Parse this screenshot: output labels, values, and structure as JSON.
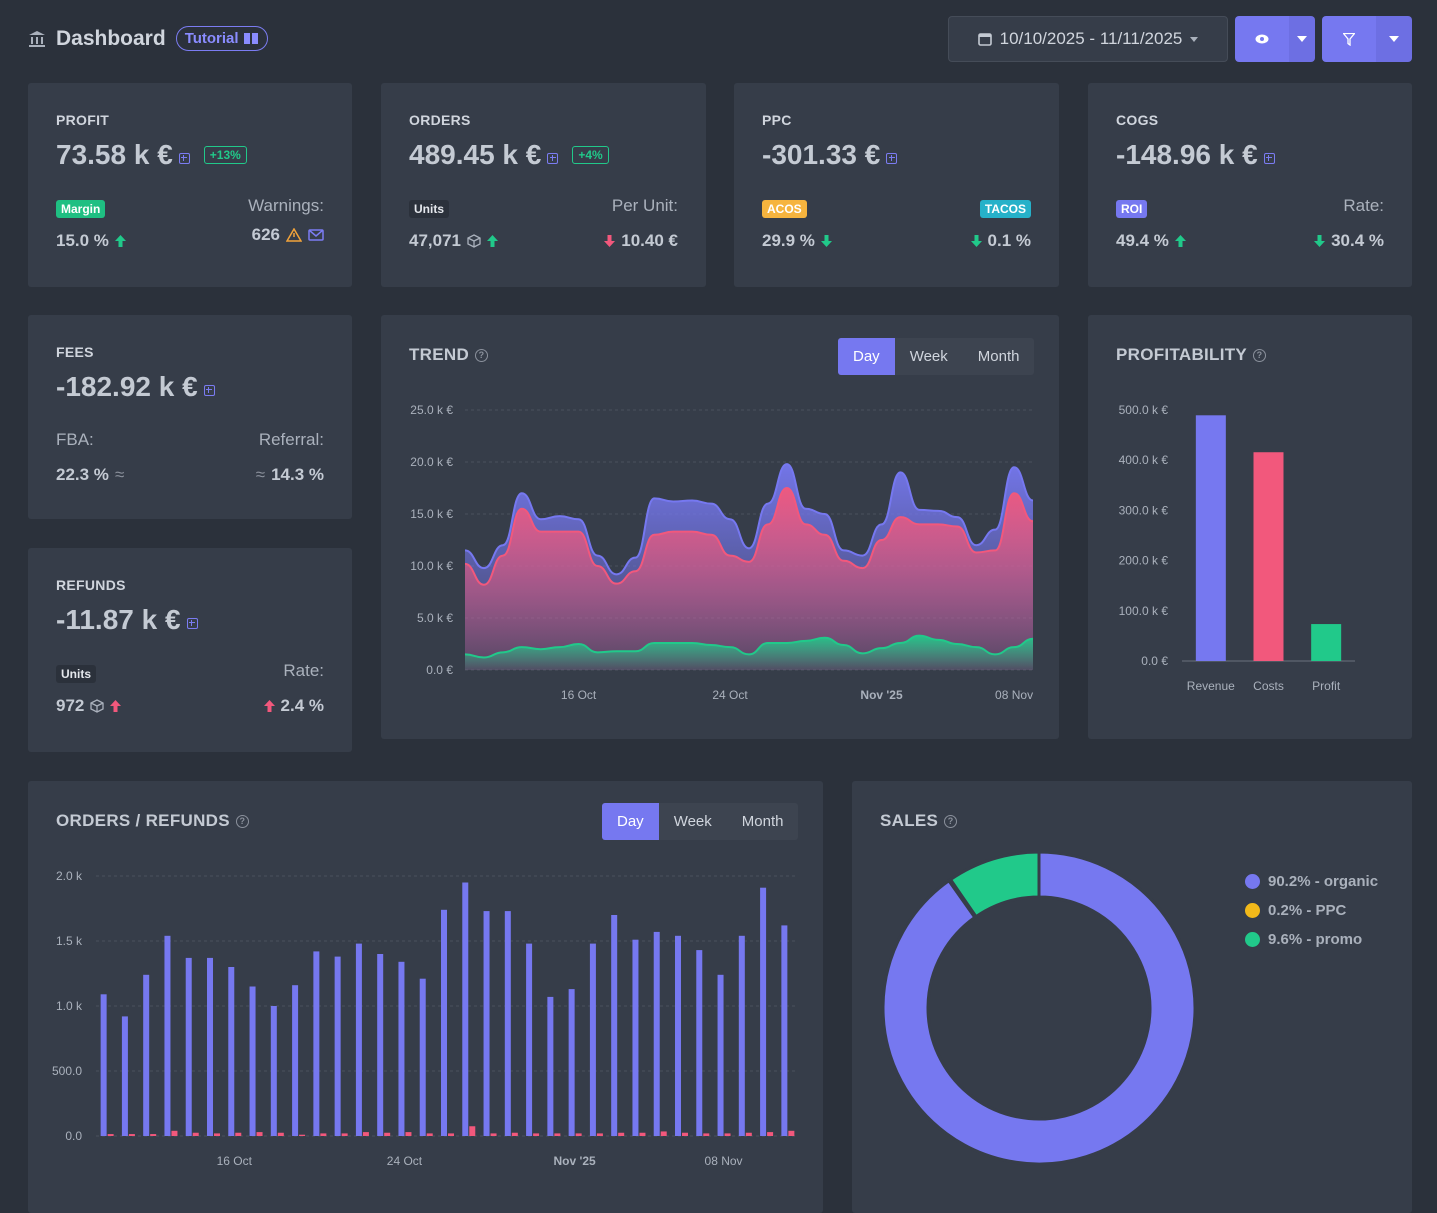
{
  "header": {
    "title": "Dashboard",
    "tutorial": "Tutorial",
    "date_range": "10/10/2025 - 11/11/2025"
  },
  "kpis": {
    "profit": {
      "label": "PROFIT",
      "value": "73.58 k €",
      "change": "+13%",
      "tag": "Margin",
      "tag_value": "15.0 %",
      "right_label": "Warnings:",
      "right_value": "626"
    },
    "orders": {
      "label": "ORDERS",
      "value": "489.45 k €",
      "change": "+4%",
      "tag": "Units",
      "tag_value": "47,071",
      "right_label": "Per Unit:",
      "right_value": "10.40 €"
    },
    "ppc": {
      "label": "PPC",
      "value": "-301.33 €",
      "tag": "ACOS",
      "tag_value": "29.9 %",
      "tag2": "TACOS",
      "tag2_value": "0.1 %"
    },
    "cogs": {
      "label": "COGS",
      "value": "-148.96 k €",
      "tag": "ROI",
      "tag_value": "49.4 %",
      "right_label": "Rate:",
      "right_value": "30.4 %"
    },
    "fees": {
      "label": "FEES",
      "value": "-182.92 k €",
      "left_label": "FBA:",
      "left_value": "22.3 %",
      "right_label": "Referral:",
      "right_value": "14.3 %"
    },
    "refunds": {
      "label": "REFUNDS",
      "value": "-11.87 k €",
      "tag": "Units",
      "tag_value": "972",
      "right_label": "Rate:",
      "right_value": "2.4 %"
    }
  },
  "trend": {
    "title": "TREND",
    "periods": [
      "Day",
      "Week",
      "Month"
    ],
    "active_period": "Day",
    "chart_data": {
      "type": "area",
      "yticks": [
        "25.0 k €",
        "20.0 k €",
        "15.0 k €",
        "10.0 k €",
        "5.0 k €",
        "0.0 €"
      ],
      "ylim": [
        0,
        25000
      ],
      "xticks": [
        {
          "label": "16 Oct",
          "i": 6
        },
        {
          "label": "24 Oct",
          "i": 14
        },
        {
          "label": "Nov '25",
          "i": 22
        },
        {
          "label": "08 Nov",
          "i": 29
        }
      ],
      "series": [
        {
          "values": [
            11500,
            9800,
            12000,
            17000,
            14500,
            14800,
            14500,
            11000,
            9200,
            10800,
            16500,
            16200,
            16300,
            16000,
            14500,
            11700,
            16000,
            19800,
            15500,
            15000,
            11500,
            11000,
            14000,
            19000,
            15400,
            15300,
            14700,
            12000,
            13500,
            19500,
            16300
          ],
          "color": "#7678f0"
        },
        {
          "values": [
            10200,
            8200,
            11000,
            15500,
            13300,
            13300,
            13300,
            10000,
            8300,
            9500,
            13000,
            13300,
            13300,
            13000,
            11000,
            10400,
            14000,
            17500,
            14000,
            13000,
            10500,
            9800,
            12500,
            14700,
            14000,
            14000,
            13800,
            11300,
            11500,
            17000,
            14300
          ],
          "color": "#f2587c"
        },
        {
          "values": [
            1500,
            1200,
            1700,
            2200,
            2000,
            2200,
            2500,
            1700,
            1800,
            1800,
            2600,
            2600,
            2600,
            2400,
            2200,
            1500,
            2600,
            2600,
            2800,
            3100,
            2400,
            1600,
            2100,
            2600,
            3300,
            2900,
            2500,
            2200,
            1500,
            2200,
            3000
          ],
          "color": "#21c98a"
        }
      ]
    }
  },
  "profitability": {
    "title": "PROFITABILITY",
    "chart_data": {
      "type": "bar",
      "categories": [
        "Revenue",
        "Costs",
        "Profit"
      ],
      "values": [
        489450,
        415870,
        73580
      ],
      "colors": [
        "#7678f0",
        "#f2587c",
        "#21c98a"
      ],
      "yticks": [
        "500.0 k €",
        "400.0 k €",
        "300.0 k €",
        "200.0 k €",
        "100.0 k €",
        "0.0 €"
      ],
      "ylim": [
        0,
        500000
      ]
    }
  },
  "orders_refunds": {
    "title": "ORDERS / REFUNDS",
    "periods": [
      "Day",
      "Week",
      "Month"
    ],
    "active_period": "Day",
    "chart_data": {
      "type": "bar",
      "yticks": [
        "2.0 k",
        "1.5 k",
        "1.0 k",
        "500.0",
        "0.0"
      ],
      "ylim": [
        0,
        2000
      ],
      "xticks": [
        {
          "label": "16 Oct",
          "i": 6
        },
        {
          "label": "24 Oct",
          "i": 14
        },
        {
          "label": "Nov '25",
          "i": 22
        },
        {
          "label": "08 Nov",
          "i": 29
        }
      ],
      "series": [
        {
          "values": [
            1090,
            920,
            1240,
            1540,
            1370,
            1370,
            1300,
            1150,
            1000,
            1160,
            1420,
            1380,
            1480,
            1400,
            1340,
            1210,
            1740,
            1950,
            1730,
            1730,
            1480,
            1070,
            1130,
            1480,
            1700,
            1510,
            1570,
            1540,
            1430,
            1240,
            1540,
            1910,
            1620
          ],
          "color": "#7678f0"
        },
        {
          "values": [
            15,
            15,
            15,
            40,
            25,
            20,
            25,
            30,
            25,
            10,
            20,
            20,
            30,
            25,
            30,
            20,
            20,
            75,
            20,
            25,
            20,
            20,
            20,
            20,
            25,
            25,
            35,
            25,
            20,
            20,
            25,
            30,
            40
          ],
          "color": "#f2587c"
        }
      ]
    }
  },
  "sales": {
    "title": "SALES",
    "chart_data": {
      "type": "pie",
      "slices": [
        {
          "label": "90.2% - organic",
          "value": 90.2,
          "color": "#7678f0"
        },
        {
          "label": "0.2% - PPC",
          "value": 0.2,
          "color": "#f2b91a"
        },
        {
          "label": "9.6% - promo",
          "value": 9.6,
          "color": "#21c98a"
        }
      ]
    }
  }
}
